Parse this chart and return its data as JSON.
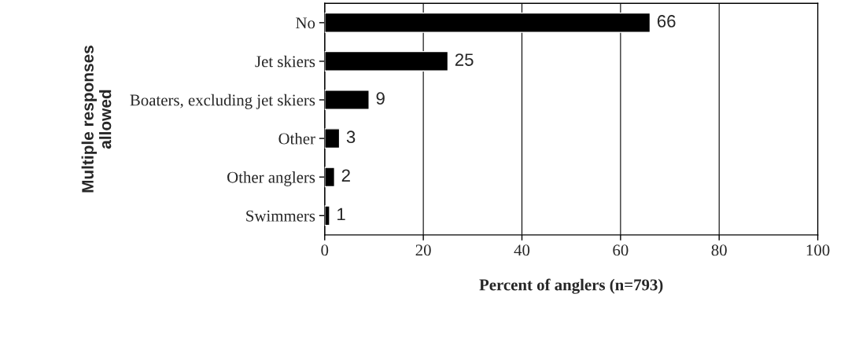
{
  "chart_data": {
    "type": "bar",
    "orientation": "horizontal",
    "categories": [
      "No",
      "Jet skiers",
      "Boaters, excluding jet skiers",
      "Other",
      "Other anglers",
      "Swimmers"
    ],
    "values": [
      66,
      25,
      9,
      3,
      2,
      1
    ],
    "color": "#000000",
    "xlabel": "Percent of anglers (n=793)",
    "ylabel": "Multiple responses\nallowed",
    "xlim": [
      0,
      100
    ],
    "xticks": [
      0,
      20,
      40,
      60,
      80,
      100
    ],
    "grid": "x",
    "data_labels": true
  }
}
